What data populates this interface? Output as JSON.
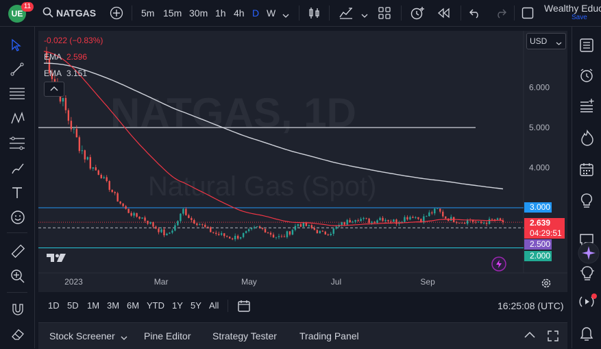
{
  "top": {
    "notif_count": "11",
    "symbol": "NATGAS",
    "timeframes": [
      "5m",
      "15m",
      "30m",
      "1h",
      "4h",
      "D",
      "W"
    ],
    "active_timeframe": "D",
    "account": "Wealthy Educ",
    "save": "Save"
  },
  "chart": {
    "change": "-0.022 (−0.83%)",
    "ema1_label": "EMA",
    "ema1_value": "2.596",
    "ema2_label": "EMA",
    "ema2_value": "3.151",
    "currency": "USD",
    "watermark1": "NATGAS, 1D",
    "watermark2": "Natural Gas (Spot)",
    "price_labels": [
      "6.000",
      "5.000",
      "4.000"
    ],
    "time_labels": [
      "2023",
      "Mar",
      "May",
      "Jul",
      "Sep"
    ],
    "tag_3000": "3.000",
    "tag_price": "2.639",
    "tag_countdown": "04:29:51",
    "tag_2500": "2.500",
    "tag_2000": "2.000",
    "colors": {
      "up": "#26a69a",
      "down": "#ef5350",
      "ema_fast": "#f23645",
      "ema_slow": "#d1d4dc",
      "hline": "#2196f3",
      "price": "#f23645"
    }
  },
  "chart_data": {
    "type": "candlestick",
    "symbol": "NATGAS",
    "interval": "1D",
    "last": 2.639,
    "ylim": [
      1.6,
      7.0
    ],
    "horizontal_levels": [
      5.0,
      3.0,
      2.0
    ],
    "ema_fast_last": 2.596,
    "ema_slow_last": 3.151,
    "close_path": [
      [
        0,
        6.9
      ],
      [
        3,
        6.3
      ],
      [
        6,
        5.8
      ],
      [
        9,
        5.2
      ],
      [
        12,
        4.7
      ],
      [
        15,
        4.3
      ],
      [
        18,
        4.0
      ],
      [
        21,
        3.8
      ],
      [
        24,
        3.5
      ],
      [
        27,
        3.2
      ],
      [
        30,
        2.95
      ],
      [
        33,
        2.8
      ],
      [
        36,
        2.75
      ],
      [
        39,
        2.6
      ],
      [
        42,
        2.45
      ],
      [
        45,
        2.3
      ],
      [
        48,
        2.55
      ],
      [
        51,
        2.95
      ],
      [
        54,
        2.7
      ],
      [
        57,
        2.6
      ],
      [
        60,
        2.45
      ],
      [
        63,
        2.35
      ],
      [
        66,
        2.3
      ],
      [
        69,
        2.25
      ],
      [
        72,
        2.3
      ],
      [
        75,
        2.4
      ],
      [
        78,
        2.5
      ],
      [
        81,
        2.45
      ],
      [
        84,
        2.3
      ],
      [
        87,
        2.25
      ],
      [
        90,
        2.4
      ],
      [
        93,
        2.6
      ],
      [
        96,
        2.55
      ],
      [
        99,
        2.45
      ],
      [
        102,
        2.35
      ],
      [
        105,
        2.4
      ],
      [
        108,
        2.55
      ],
      [
        111,
        2.65
      ],
      [
        114,
        2.75
      ],
      [
        117,
        2.7
      ],
      [
        120,
        2.65
      ],
      [
        123,
        2.75
      ],
      [
        126,
        2.7
      ],
      [
        129,
        2.65
      ],
      [
        132,
        2.75
      ],
      [
        135,
        2.8
      ],
      [
        138,
        2.7
      ],
      [
        141,
        2.85
      ],
      [
        144,
        2.95
      ],
      [
        147,
        2.75
      ],
      [
        150,
        2.7
      ],
      [
        153,
        2.65
      ],
      [
        156,
        2.7
      ],
      [
        159,
        2.6
      ],
      [
        162,
        2.65
      ],
      [
        165,
        2.7
      ],
      [
        168,
        2.64
      ]
    ]
  },
  "timeframes": {
    "ranges": [
      "1D",
      "5D",
      "1M",
      "3M",
      "6M",
      "YTD",
      "1Y",
      "5Y",
      "All"
    ],
    "clock": "16:25:08 (UTC)"
  },
  "bottom": {
    "tabs": [
      "Stock Screener",
      "Pine Editor",
      "Strategy Tester",
      "Trading Panel"
    ]
  }
}
